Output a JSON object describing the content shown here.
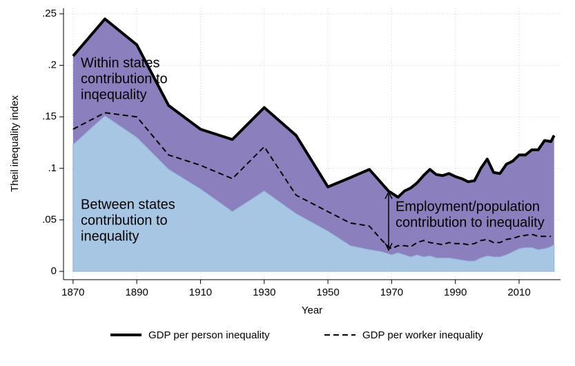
{
  "chart_data": {
    "type": "area",
    "ylabel": "Theil inequality index",
    "xlabel": "Year",
    "x": [
      1870,
      1880,
      1890,
      1900,
      1910,
      1920,
      1930,
      1940,
      1950,
      1957,
      1963,
      1967,
      1969,
      1970,
      1972,
      1974,
      1976,
      1978,
      1980,
      1982,
      1984,
      1986,
      1988,
      1990,
      1992,
      1994,
      1996,
      1998,
      2000,
      2002,
      2004,
      2006,
      2008,
      2010,
      2012,
      2014,
      2016,
      2018,
      2020,
      2021
    ],
    "xlim": [
      1867,
      2023
    ],
    "xticks": [
      1870,
      1890,
      1910,
      1930,
      1950,
      1970,
      1990,
      2010
    ],
    "ylim": [
      0,
      0.25
    ],
    "yticks": [
      0,
      {
        "value": 0.05,
        "label": ".05"
      },
      {
        "value": 0.1,
        "label": ".1"
      },
      {
        "value": 0.15,
        "label": ".15"
      },
      {
        "value": 0.2,
        "label": ".2"
      },
      {
        "value": 0.25,
        "label": ".25"
      }
    ],
    "grid": true,
    "between_states": {
      "color": "#a7c6e3",
      "values": [
        0.123,
        0.151,
        0.13,
        0.099,
        0.08,
        0.058,
        0.078,
        0.056,
        0.039,
        0.025,
        0.021,
        0.019,
        0.017,
        0.016,
        0.018,
        0.016,
        0.014,
        0.016,
        0.014,
        0.015,
        0.013,
        0.013,
        0.013,
        0.012,
        0.011,
        0.01,
        0.01,
        0.013,
        0.015,
        0.014,
        0.014,
        0.016,
        0.019,
        0.022,
        0.023,
        0.023,
        0.021,
        0.022,
        0.024,
        0.026
      ]
    },
    "within_color": "#8b80bd",
    "series": [
      {
        "name": "GDP per person inequality",
        "color": "#000000",
        "dash": false,
        "values": [
          0.209,
          0.245,
          0.22,
          0.161,
          0.138,
          0.128,
          0.159,
          0.132,
          0.082,
          0.091,
          0.099,
          0.085,
          0.078,
          0.076,
          0.072,
          0.078,
          0.081,
          0.086,
          0.093,
          0.099,
          0.094,
          0.093,
          0.095,
          0.092,
          0.09,
          0.087,
          0.088,
          0.1,
          0.109,
          0.096,
          0.095,
          0.104,
          0.107,
          0.113,
          0.113,
          0.118,
          0.118,
          0.127,
          0.126,
          0.132
        ]
      },
      {
        "name": "GDP per worker inequality",
        "color": "#000000",
        "dash": true,
        "values": [
          0.138,
          0.154,
          0.15,
          0.113,
          0.103,
          0.09,
          0.121,
          0.074,
          0.058,
          0.047,
          0.044,
          0.03,
          0.024,
          0.022,
          0.025,
          0.025,
          0.024,
          0.028,
          0.03,
          0.028,
          0.027,
          0.026,
          0.028,
          0.027,
          0.027,
          0.026,
          0.027,
          0.03,
          0.031,
          0.028,
          0.028,
          0.031,
          0.032,
          0.034,
          0.035,
          0.036,
          0.034,
          0.034,
          0.034,
          null
        ]
      }
    ],
    "annotations": [
      [
        "Within states",
        "contribution to",
        "inqequality"
      ],
      [
        "Between states",
        "contribution to",
        "inequality"
      ],
      [
        "Employment/population",
        "contribution to inequality"
      ]
    ]
  }
}
